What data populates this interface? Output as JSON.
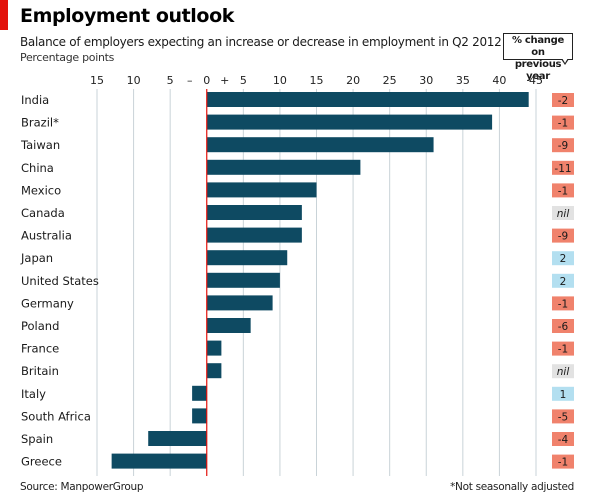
{
  "header": {
    "title": "Employment outlook",
    "subtitle": "Balance of employers expecting an increase or decrease in employment in Q2 2012",
    "unit": "Percentage points",
    "change_label_line1": "% change on",
    "change_label_line2": "previous year"
  },
  "footer": {
    "source": "Source: ManpowerGroup",
    "note": "*Not seasonally adjusted"
  },
  "colors": {
    "bar": "#0e4a62",
    "zero_line": "#e3120b",
    "negative_change": "#f0826c",
    "positive_change": "#b3dff0",
    "nil_change": "#e2e2e2"
  },
  "chart_data": {
    "type": "bar",
    "orientation": "horizontal",
    "title": "Employment outlook",
    "subtitle": "Balance of employers expecting an increase or decrease in employment in Q2 2012",
    "xlabel": "Percentage points",
    "xlim": [
      -15,
      45
    ],
    "x_ticks": [
      -15,
      -10,
      -5,
      0,
      5,
      10,
      15,
      20,
      25,
      30,
      35,
      40,
      45
    ],
    "x_tick_labels": [
      "15",
      "10",
      "5",
      "0",
      "5",
      "10",
      "15",
      "20",
      "25",
      "30",
      "35",
      "40",
      "45"
    ],
    "sign_labels": [
      "–",
      "+"
    ],
    "grid": true,
    "categories": [
      "India",
      "Brazil*",
      "Taiwan",
      "China",
      "Mexico",
      "Canada",
      "Australia",
      "Japan",
      "United States",
      "Germany",
      "Poland",
      "France",
      "Britain",
      "Italy",
      "South Africa",
      "Spain",
      "Greece"
    ],
    "series": [
      {
        "values": [
          44,
          39,
          31,
          21,
          15,
          13,
          13,
          11,
          10,
          9,
          6,
          2,
          2,
          -2,
          -2,
          -8,
          -13
        ]
      }
    ],
    "change_on_previous_year": [
      "-2",
      "-1",
      "-9",
      "-11",
      "-1",
      "nil",
      "-9",
      "2",
      "2",
      "-1",
      "-6",
      "-1",
      "nil",
      "1",
      "-5",
      "-4",
      "-1"
    ]
  }
}
